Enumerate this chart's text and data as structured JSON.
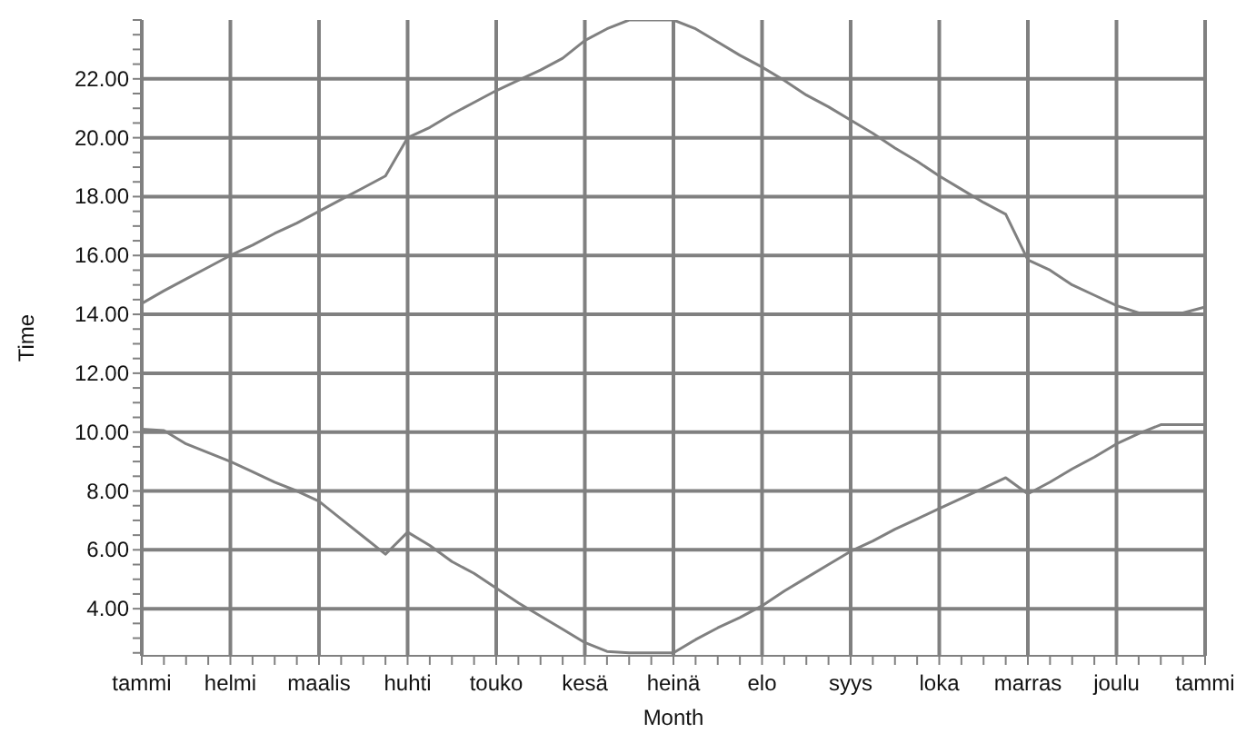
{
  "chart_data": {
    "type": "line",
    "xlabel": "Month",
    "ylabel": "Time",
    "categories": [
      "tammi",
      null,
      null,
      null,
      "helmi",
      null,
      null,
      null,
      "maalis",
      null,
      null,
      null,
      "huhti",
      null,
      null,
      null,
      "touko",
      null,
      null,
      null,
      "kesä",
      null,
      null,
      null,
      "heinä",
      null,
      null,
      null,
      "elo",
      null,
      null,
      null,
      "syys",
      null,
      null,
      null,
      "loka",
      null,
      null,
      null,
      "marras",
      null,
      null,
      null,
      "joulu",
      null,
      null,
      null,
      "tammi"
    ],
    "ylim": [
      2.4,
      24
    ],
    "yticks": [
      {
        "value": 2.5,
        "label": null
      },
      {
        "value": 3,
        "label": null
      },
      {
        "value": 3.5,
        "label": null
      },
      {
        "value": 4,
        "label": "4.00"
      },
      {
        "value": 4.5,
        "label": null
      },
      {
        "value": 5,
        "label": null
      },
      {
        "value": 5.5,
        "label": null
      },
      {
        "value": 6,
        "label": "6.00"
      },
      {
        "value": 6.5,
        "label": null
      },
      {
        "value": 7,
        "label": null
      },
      {
        "value": 7.5,
        "label": null
      },
      {
        "value": 8,
        "label": "8.00"
      },
      {
        "value": 8.5,
        "label": null
      },
      {
        "value": 9,
        "label": null
      },
      {
        "value": 9.5,
        "label": null
      },
      {
        "value": 10,
        "label": "10.00"
      },
      {
        "value": 10.5,
        "label": null
      },
      {
        "value": 11,
        "label": null
      },
      {
        "value": 11.5,
        "label": null
      },
      {
        "value": 12,
        "label": "12.00"
      },
      {
        "value": 12.5,
        "label": null
      },
      {
        "value": 13,
        "label": null
      },
      {
        "value": 13.5,
        "label": null
      },
      {
        "value": 14,
        "label": "14.00"
      },
      {
        "value": 14.5,
        "label": null
      },
      {
        "value": 15,
        "label": null
      },
      {
        "value": 15.5,
        "label": null
      },
      {
        "value": 16,
        "label": "16.00"
      },
      {
        "value": 16.5,
        "label": null
      },
      {
        "value": 17,
        "label": null
      },
      {
        "value": 17.5,
        "label": null
      },
      {
        "value": 18,
        "label": "18.00"
      },
      {
        "value": 18.5,
        "label": null
      },
      {
        "value": 19,
        "label": null
      },
      {
        "value": 19.5,
        "label": null
      },
      {
        "value": 20,
        "label": "20.00"
      },
      {
        "value": 20.5,
        "label": null
      },
      {
        "value": 21,
        "label": null
      },
      {
        "value": 21.5,
        "label": null
      },
      {
        "value": 22,
        "label": "22.00"
      },
      {
        "value": 22.5,
        "label": null
      },
      {
        "value": 23,
        "label": null
      },
      {
        "value": 23.5,
        "label": null
      },
      {
        "value": 24,
        "label": null
      }
    ],
    "grid": true,
    "marker": "none",
    "line_style": "solid",
    "series": [
      {
        "color": "#808080",
        "values": [
          14.37,
          14.8,
          15.2,
          15.6,
          16.0,
          16.35,
          16.75,
          17.1,
          17.5,
          17.9,
          18.3,
          18.7,
          20.0,
          20.35,
          20.8,
          21.2,
          21.6,
          21.95,
          22.3,
          22.7,
          23.3,
          23.7,
          24.0,
          24.0,
          24.0,
          23.7,
          23.25,
          22.8,
          22.4,
          21.95,
          21.45,
          21.05,
          20.6,
          20.15,
          19.65,
          19.2,
          18.7,
          18.25,
          17.8,
          17.4,
          15.85,
          15.5,
          15.0,
          14.65,
          14.3,
          14.05,
          14.05,
          14.05,
          14.25
        ]
      },
      {
        "color": "#808080",
        "values": [
          10.1,
          10.05,
          9.6,
          9.3,
          9.0,
          8.65,
          8.3,
          8.0,
          7.65,
          7.05,
          6.45,
          5.85,
          6.6,
          6.15,
          5.6,
          5.2,
          4.7,
          4.2,
          3.75,
          3.3,
          2.85,
          2.55,
          2.5,
          2.5,
          2.5,
          2.95,
          3.35,
          3.7,
          4.1,
          4.6,
          5.05,
          5.5,
          5.95,
          6.3,
          6.7,
          7.05,
          7.4,
          7.75,
          8.1,
          8.45,
          7.9,
          8.3,
          8.75,
          9.15,
          9.6,
          9.95,
          10.25,
          10.25,
          10.25
        ]
      }
    ]
  }
}
